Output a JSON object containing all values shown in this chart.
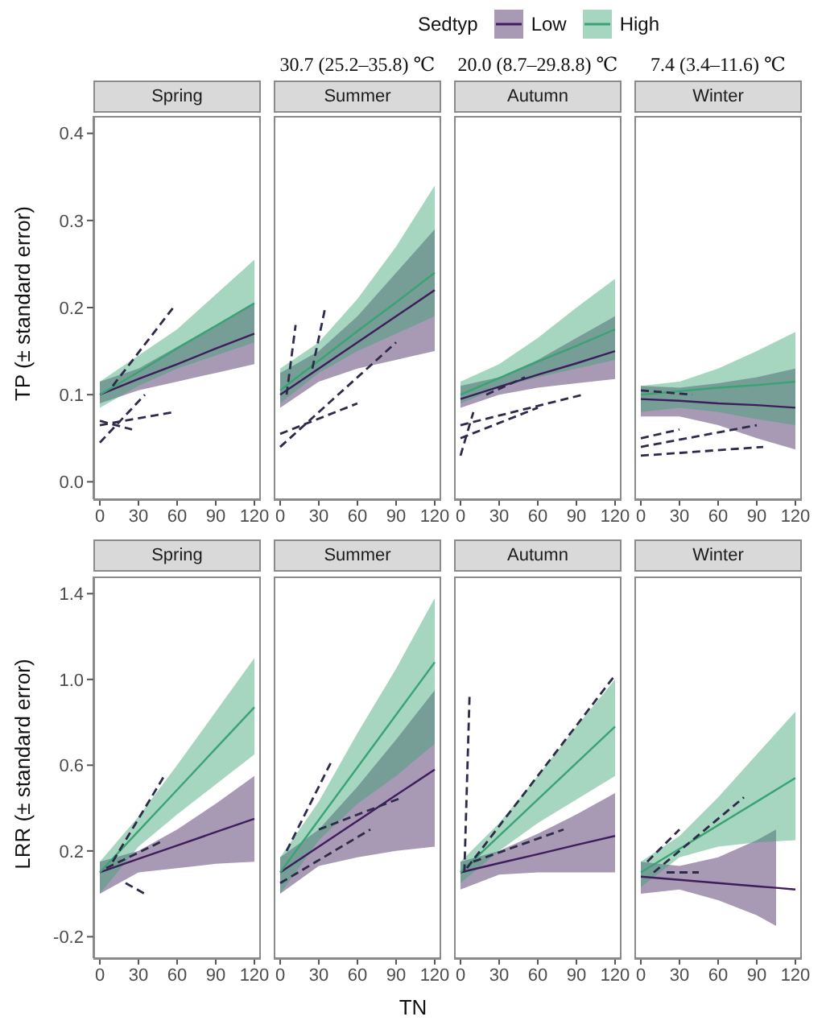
{
  "chart_data": [
    {
      "type": "line",
      "title": "Spring",
      "ylabel": "TP (± standard error)",
      "legend": "top",
      "legend_title": "Sedtyp",
      "xlim": [
        -5,
        125
      ],
      "xticks": [
        0,
        30,
        60,
        90,
        120
      ],
      "ylim": [
        -0.02,
        0.42
      ],
      "yticks": [
        {
          "value": 0,
          "label": "0.0"
        },
        0.1,
        0.2,
        0.3,
        0.4
      ],
      "series": [
        {
          "name": "Low",
          "color": "#3f1d5c",
          "x": [
            0,
            30,
            60,
            90,
            120
          ],
          "values": [
            0.1,
            0.118,
            0.135,
            0.153,
            0.17
          ],
          "lower": [
            0.09,
            0.105,
            0.115,
            0.125,
            0.135
          ],
          "upper": [
            0.115,
            0.13,
            0.155,
            0.18,
            0.205
          ]
        },
        {
          "name": "High",
          "color": "#3aa374",
          "x": [
            0,
            30,
            60,
            90,
            120
          ],
          "values": [
            0.1,
            0.126,
            0.153,
            0.179,
            0.205
          ],
          "lower": [
            0.085,
            0.11,
            0.13,
            0.145,
            0.16
          ],
          "upper": [
            0.115,
            0.145,
            0.175,
            0.215,
            0.255
          ]
        },
        {
          "color": "#2e2a4a",
          "line_style": "dashed",
          "x": [
            10,
            57
          ],
          "values": [
            0.11,
            0.2
          ]
        },
        {
          "color": "#2e2a4a",
          "line_style": "dashed",
          "x": [
            0,
            57
          ],
          "values": [
            0.065,
            0.08
          ]
        },
        {
          "color": "#2e2a4a",
          "line_style": "dashed",
          "x": [
            0,
            35
          ],
          "values": [
            0.045,
            0.1
          ]
        },
        {
          "color": "#2e2a4a",
          "line_style": "dashed",
          "x": [
            0,
            25
          ],
          "values": [
            0.07,
            0.06
          ]
        }
      ]
    },
    {
      "type": "line",
      "title": "Summer",
      "subtitle": "30.7 (25.2–35.8) ℃",
      "tick_labels": "x",
      "xlim": [
        -5,
        125
      ],
      "xticks": [
        0,
        30,
        60,
        90,
        120
      ],
      "ylim": [
        -0.02,
        0.42
      ],
      "series": [
        {
          "color": "#3f1d5c",
          "x": [
            0,
            30,
            60,
            90,
            120
          ],
          "values": [
            0.1,
            0.13,
            0.16,
            0.19,
            0.22
          ],
          "lower": [
            0.085,
            0.115,
            0.13,
            0.14,
            0.15
          ],
          "upper": [
            0.125,
            0.15,
            0.19,
            0.24,
            0.29
          ]
        },
        {
          "color": "#3aa374",
          "x": [
            0,
            30,
            60,
            90,
            120
          ],
          "values": [
            0.105,
            0.139,
            0.173,
            0.206,
            0.24
          ],
          "lower": [
            0.09,
            0.125,
            0.15,
            0.17,
            0.19
          ],
          "upper": [
            0.13,
            0.16,
            0.21,
            0.27,
            0.34
          ]
        },
        {
          "color": "#2e2a4a",
          "line_style": "dashed",
          "x": [
            5,
            12
          ],
          "values": [
            0.1,
            0.18
          ]
        },
        {
          "color": "#2e2a4a",
          "line_style": "dashed",
          "x": [
            25,
            35
          ],
          "values": [
            0.13,
            0.2
          ]
        },
        {
          "color": "#2e2a4a",
          "line_style": "dashed",
          "x": [
            0,
            90
          ],
          "values": [
            0.04,
            0.16
          ]
        },
        {
          "color": "#2e2a4a",
          "line_style": "dashed",
          "x": [
            0,
            60
          ],
          "values": [
            0.055,
            0.09
          ]
        }
      ]
    },
    {
      "type": "line",
      "title": "Autumn",
      "subtitle": "20.0 (8.7–29.8.8) ℃",
      "tick_labels": "x",
      "xlim": [
        -5,
        125
      ],
      "xticks": [
        0,
        30,
        60,
        90,
        120
      ],
      "ylim": [
        -0.02,
        0.42
      ],
      "series": [
        {
          "color": "#3f1d5c",
          "x": [
            0,
            30,
            60,
            90,
            120
          ],
          "values": [
            0.095,
            0.109,
            0.123,
            0.136,
            0.15
          ],
          "lower": [
            0.085,
            0.1,
            0.108,
            0.113,
            0.118
          ],
          "upper": [
            0.11,
            0.12,
            0.14,
            0.165,
            0.19
          ]
        },
        {
          "color": "#3aa374",
          "x": [
            0,
            30,
            60,
            90,
            120
          ],
          "values": [
            0.1,
            0.119,
            0.138,
            0.156,
            0.175
          ],
          "lower": [
            0.09,
            0.108,
            0.12,
            0.13,
            0.14
          ],
          "upper": [
            0.115,
            0.135,
            0.165,
            0.2,
            0.233
          ]
        },
        {
          "color": "#2e2a4a",
          "line_style": "dashed",
          "x": [
            0,
            95
          ],
          "values": [
            0.065,
            0.1
          ]
        },
        {
          "color": "#2e2a4a",
          "line_style": "dashed",
          "x": [
            0,
            60
          ],
          "values": [
            0.05,
            0.085
          ]
        },
        {
          "color": "#2e2a4a",
          "line_style": "dashed",
          "x": [
            0,
            10
          ],
          "values": [
            0.03,
            0.08
          ]
        },
        {
          "color": "#2e2a4a",
          "line_style": "dashed",
          "x": [
            20,
            50
          ],
          "values": [
            0.1,
            0.12
          ]
        }
      ]
    },
    {
      "type": "line",
      "title": "Winter",
      "subtitle": "7.4 (3.4–11.6) ℃",
      "tick_labels": "x",
      "xlim": [
        -5,
        125
      ],
      "xticks": [
        0,
        30,
        60,
        90,
        120
      ],
      "ylim": [
        -0.02,
        0.42
      ],
      "series": [
        {
          "color": "#3f1d5c",
          "x": [
            0,
            30,
            60,
            90,
            120
          ],
          "values": [
            0.095,
            0.093,
            0.09,
            0.088,
            0.085
          ],
          "lower": [
            0.075,
            0.075,
            0.065,
            0.05,
            0.037
          ],
          "upper": [
            0.11,
            0.108,
            0.113,
            0.12,
            0.13
          ]
        },
        {
          "color": "#3aa374",
          "x": [
            0,
            30,
            60,
            90,
            120
          ],
          "values": [
            0.1,
            0.104,
            0.108,
            0.111,
            0.115
          ],
          "lower": [
            0.08,
            0.085,
            0.08,
            0.072,
            0.065
          ],
          "upper": [
            0.11,
            0.115,
            0.13,
            0.15,
            0.172
          ]
        },
        {
          "color": "#2e2a4a",
          "line_style": "dashed",
          "x": [
            0,
            30
          ],
          "values": [
            0.05,
            0.06
          ]
        },
        {
          "color": "#2e2a4a",
          "line_style": "dashed",
          "x": [
            0,
            90
          ],
          "values": [
            0.04,
            0.065
          ]
        },
        {
          "color": "#2e2a4a",
          "line_style": "dashed",
          "x": [
            0,
            95
          ],
          "values": [
            0.03,
            0.04
          ]
        },
        {
          "color": "#2e2a4a",
          "line_style": "dashed",
          "x": [
            0,
            40
          ],
          "values": [
            0.105,
            0.1
          ]
        }
      ]
    },
    {
      "type": "line",
      "title": "Spring",
      "ylabel": "LRR (± standard error)",
      "xlim": [
        -5,
        125
      ],
      "xticks": [
        0,
        30,
        60,
        90,
        120
      ],
      "ylim": [
        -0.3,
        1.48
      ],
      "yticks": [
        -0.2,
        0.2,
        0.6,
        {
          "value": 1,
          "label": "1.0"
        },
        1.4
      ],
      "series": [
        {
          "color": "#3f1d5c",
          "x": [
            0,
            30,
            60,
            90,
            120
          ],
          "values": [
            0.1,
            0.163,
            0.225,
            0.288,
            0.35
          ],
          "lower": [
            0,
            0.1,
            0.12,
            0.14,
            0.15
          ],
          "upper": [
            0.15,
            0.2,
            0.3,
            0.42,
            0.55
          ]
        },
        {
          "color": "#3aa374",
          "x": [
            0,
            30,
            60,
            90,
            120
          ],
          "values": [
            0.1,
            0.293,
            0.485,
            0.678,
            0.87
          ],
          "lower": [
            0,
            0.22,
            0.37,
            0.51,
            0.65
          ],
          "upper": [
            0.15,
            0.36,
            0.6,
            0.85,
            1.1
          ]
        },
        {
          "color": "#2e2a4a",
          "line_style": "dashed",
          "x": [
            10,
            50
          ],
          "values": [
            0.15,
            0.55
          ]
        },
        {
          "color": "#2e2a4a",
          "line_style": "dashed",
          "x": [
            20,
            35
          ],
          "values": [
            0.05,
            0
          ]
        },
        {
          "color": "#2e2a4a",
          "line_style": "dashed",
          "x": [
            5,
            50
          ],
          "values": [
            0.12,
            0.25
          ]
        }
      ]
    },
    {
      "type": "line",
      "title": "Summer",
      "xlabel": "TN",
      "tick_labels": "x",
      "xlim": [
        -5,
        125
      ],
      "xticks": [
        0,
        30,
        60,
        90,
        120
      ],
      "ylim": [
        -0.3,
        1.48
      ],
      "series": [
        {
          "color": "#3f1d5c",
          "x": [
            0,
            30,
            60,
            90,
            120
          ],
          "values": [
            0.1,
            0.22,
            0.34,
            0.46,
            0.58
          ],
          "lower": [
            0,
            0.13,
            0.17,
            0.2,
            0.22
          ],
          "upper": [
            0.17,
            0.3,
            0.5,
            0.72,
            0.95
          ]
        },
        {
          "color": "#3aa374",
          "x": [
            0,
            30,
            60,
            90,
            120
          ],
          "values": [
            0.1,
            0.345,
            0.59,
            0.835,
            1.08
          ],
          "lower": [
            0,
            0.25,
            0.42,
            0.55,
            0.7
          ],
          "upper": [
            0.17,
            0.43,
            0.75,
            1.05,
            1.38
          ]
        },
        {
          "color": "#2e2a4a",
          "line_style": "dashed",
          "x": [
            5,
            40
          ],
          "values": [
            0.2,
            0.62
          ]
        },
        {
          "color": "#2e2a4a",
          "line_style": "dashed",
          "x": [
            0,
            70
          ],
          "values": [
            0.05,
            0.3
          ]
        },
        {
          "color": "#2e2a4a",
          "line_style": "dashed",
          "x": [
            30,
            95
          ],
          "values": [
            0.3,
            0.45
          ]
        }
      ]
    },
    {
      "type": "line",
      "title": "Autumn",
      "tick_labels": "x",
      "xlim": [
        -5,
        125
      ],
      "xticks": [
        0,
        30,
        60,
        90,
        120
      ],
      "ylim": [
        -0.3,
        1.48
      ],
      "series": [
        {
          "color": "#3f1d5c",
          "x": [
            0,
            30,
            60,
            90,
            120
          ],
          "values": [
            0.1,
            0.143,
            0.185,
            0.228,
            0.27
          ],
          "lower": [
            0.02,
            0.09,
            0.1,
            0.1,
            0.1
          ],
          "upper": [
            0.15,
            0.2,
            0.28,
            0.37,
            0.47
          ]
        },
        {
          "color": "#3aa374",
          "x": [
            0,
            30,
            60,
            90,
            120
          ],
          "values": [
            0.1,
            0.27,
            0.44,
            0.61,
            0.78
          ],
          "lower": [
            0.05,
            0.2,
            0.33,
            0.44,
            0.55
          ],
          "upper": [
            0.15,
            0.33,
            0.55,
            0.78,
            1
          ]
        },
        {
          "color": "#2e2a4a",
          "line_style": "dashed",
          "x": [
            3,
            7
          ],
          "values": [
            0.1,
            0.92
          ]
        },
        {
          "color": "#2e2a4a",
          "line_style": "dashed",
          "x": [
            5,
            120
          ],
          "values": [
            0.12,
            1.02
          ]
        },
        {
          "color": "#2e2a4a",
          "line_style": "dashed",
          "x": [
            10,
            80
          ],
          "values": [
            0.15,
            0.3
          ]
        }
      ]
    },
    {
      "type": "line",
      "title": "Winter",
      "tick_labels": "x",
      "xlim": [
        -5,
        125
      ],
      "xticks": [
        0,
        30,
        60,
        90,
        120
      ],
      "ylim": [
        -0.3,
        1.48
      ],
      "series": [
        {
          "color": "#3f1d5c",
          "x": [
            0,
            30,
            60,
            90,
            105,
            120
          ],
          "values": [
            0.08,
            0.065,
            0.05,
            0.035,
            0.028,
            0.02
          ],
          "lower": [
            0,
            0.02,
            -0.03,
            -0.1,
            -0.15,
            null
          ],
          "upper": [
            0.15,
            0.13,
            0.17,
            0.25,
            0.3,
            null
          ]
        },
        {
          "color": "#3aa374",
          "x": [
            0,
            30,
            60,
            90,
            120
          ],
          "values": [
            0.1,
            0.21,
            0.32,
            0.43,
            0.54
          ],
          "lower": [
            0.03,
            0.17,
            0.22,
            0.24,
            0.25
          ],
          "upper": [
            0.15,
            0.27,
            0.45,
            0.65,
            0.85
          ]
        },
        {
          "color": "#2e2a4a",
          "line_style": "dashed",
          "x": [
            10,
            80
          ],
          "values": [
            0.1,
            0.45
          ]
        },
        {
          "color": "#2e2a4a",
          "line_style": "dashed",
          "x": [
            5,
            30
          ],
          "values": [
            0.15,
            0.3
          ]
        },
        {
          "color": "#2e2a4a",
          "line_style": "dashed",
          "x": [
            20,
            45
          ],
          "values": [
            0.1,
            0.1
          ]
        }
      ]
    }
  ]
}
